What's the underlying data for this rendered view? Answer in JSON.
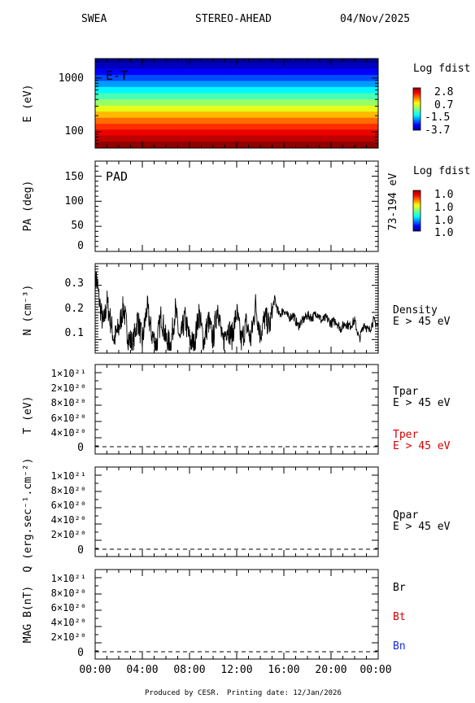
{
  "header": {
    "instrument": "SWEA",
    "spacecraft": "STEREO-AHEAD",
    "date": "04/Nov/2025"
  },
  "footer": {
    "produced_by": "Produced by CESR.",
    "printing_date": "Printing date: 12/Jan/2026"
  },
  "chart_data": [
    {
      "type": "heatmap",
      "panel_label": "E-T",
      "ylabel": "E (eV)",
      "yscale": "log",
      "ylim": [
        50,
        2300
      ],
      "ytick_labels": [
        "1000",
        "100"
      ],
      "yticks": [
        1000,
        100
      ],
      "colorbar": {
        "title": "Log fdist",
        "tick_labels": [
          "2.8",
          "0.7",
          "-1.5",
          "-3.7"
        ],
        "range": [
          -3.7,
          2.8
        ]
      },
      "z_by_energy_band": {
        "energies_eV": [
          2200,
          1700,
          1300,
          1000,
          780,
          600,
          460,
          350,
          270,
          210,
          160,
          125,
          97,
          75,
          58
        ],
        "log_fdist": [
          -3.6,
          -3.3,
          -2.9,
          -2.4,
          -1.9,
          -1.3,
          -0.8,
          -0.3,
          0.2,
          0.8,
          1.3,
          1.7,
          2.1,
          2.4,
          2.7
        ]
      }
    },
    {
      "type": "heatmap",
      "panel_label": "PAD",
      "ylabel": "PA (deg)",
      "right_label": "73-194 eV",
      "ylim": [
        0,
        180
      ],
      "ytick_labels": [
        "150",
        "100",
        "50",
        "0"
      ],
      "yticks": [
        150,
        100,
        50,
        0
      ],
      "colorbar": {
        "title": "Log fdist",
        "tick_labels": [
          "1.0",
          "1.0",
          "1.0",
          "1.0"
        ]
      }
    },
    {
      "type": "line",
      "ylabel": "N (cm⁻³)",
      "legend": [
        "Density",
        "E > 45 eV"
      ],
      "ylim": [
        0.05,
        0.38
      ],
      "ytick_labels": [
        "0.3",
        "0.2",
        "0.1"
      ],
      "yticks": [
        0.3,
        0.2,
        0.1
      ],
      "series": [
        {
          "name": "Density",
          "x_hours": [
            0.0,
            0.1,
            0.3,
            0.5,
            0.7,
            1.0,
            1.3,
            1.6,
            2.0,
            2.4,
            2.8,
            3.2,
            3.6,
            4.0,
            4.4,
            4.8,
            5.2,
            5.6,
            6.0,
            6.4,
            6.8,
            7.2,
            7.6,
            8.0,
            8.4,
            8.8,
            9.2,
            9.6,
            10.0,
            10.4,
            10.8,
            11.2,
            11.6,
            12.0,
            12.4,
            12.8,
            13.2,
            13.6,
            14.0,
            14.4,
            14.8,
            15.2,
            15.6,
            16.0,
            16.4,
            16.8,
            17.2,
            17.6,
            18.0,
            18.4,
            18.8,
            19.2,
            19.6,
            20.0,
            20.4,
            20.8,
            21.2,
            21.6,
            22.0,
            22.4,
            22.8,
            23.2,
            23.6,
            24.0
          ],
          "values": [
            0.3,
            0.33,
            0.26,
            0.2,
            0.15,
            0.24,
            0.17,
            0.1,
            0.14,
            0.22,
            0.11,
            0.08,
            0.18,
            0.09,
            0.22,
            0.12,
            0.08,
            0.19,
            0.1,
            0.08,
            0.21,
            0.09,
            0.18,
            0.1,
            0.08,
            0.2,
            0.09,
            0.17,
            0.1,
            0.23,
            0.08,
            0.15,
            0.11,
            0.2,
            0.09,
            0.16,
            0.1,
            0.23,
            0.12,
            0.18,
            0.15,
            0.25,
            0.19,
            0.21,
            0.18,
            0.19,
            0.15,
            0.17,
            0.19,
            0.18,
            0.2,
            0.17,
            0.18,
            0.16,
            0.17,
            0.14,
            0.16,
            0.15,
            0.17,
            0.1,
            0.16,
            0.13,
            0.17,
            0.15
          ]
        }
      ]
    },
    {
      "type": "line",
      "ylabel": "T (eV)",
      "legend": [
        "Tpar",
        "E > 45 eV",
        "Tper",
        "E > 45 eV"
      ],
      "legend_colors": [
        "#000000",
        "#000000",
        "#d40000",
        "#d40000"
      ],
      "ylim": [
        0,
        1.1e+21
      ],
      "ytick_labels": [
        "1×10²¹",
        "8×10²⁰",
        "6×10²⁰",
        "4×10²⁰",
        "2×10²⁰",
        "0"
      ],
      "yticks": [
        1e+21,
        8e+20,
        6e+20,
        4e+20,
        2e+20,
        0
      ],
      "series": [
        {
          "name": "Tpar",
          "x_hours": [
            0,
            24
          ],
          "values": [
            0,
            0
          ]
        }
      ]
    },
    {
      "type": "line",
      "ylabel": "Q (erg.sec⁻¹.cm⁻²)",
      "legend": [
        "Qpar",
        "E > 45 eV"
      ],
      "legend_colors": [
        "#000000",
        "#000000"
      ],
      "ylim": [
        0,
        1.1e+21
      ],
      "ytick_labels": [
        "1×10²¹",
        "8×10²⁰",
        "6×10²⁰",
        "4×10²⁰",
        "2×10²⁰",
        "0"
      ],
      "yticks": [
        1e+21,
        8e+20,
        6e+20,
        4e+20,
        2e+20,
        0
      ],
      "series": [
        {
          "name": "Qpar",
          "x_hours": [
            0,
            24
          ],
          "values": [
            0,
            0
          ]
        }
      ]
    },
    {
      "type": "line",
      "ylabel": "MAG B(nT)",
      "legend": [
        "Br",
        "Bt",
        "Bn"
      ],
      "legend_colors": [
        "#000000",
        "#d40000",
        "#1a2ad8"
      ],
      "ylim": [
        0,
        1.1e+21
      ],
      "ytick_labels": [
        "1×10²¹",
        "8×10²⁰",
        "6×10²⁰",
        "4×10²⁰",
        "2×10²⁰",
        "0"
      ],
      "yticks": [
        1e+21,
        8e+20,
        6e+20,
        4e+20,
        2e+20,
        0
      ],
      "series": [
        {
          "name": "Br",
          "x_hours": [
            0,
            24
          ],
          "values": [
            0,
            0
          ]
        }
      ]
    }
  ],
  "x_axis": {
    "tick_labels": [
      "00:00",
      "04:00",
      "08:00",
      "12:00",
      "16:00",
      "20:00",
      "00:00"
    ],
    "ticks_hours": [
      0,
      4,
      8,
      12,
      16,
      20,
      24
    ],
    "xlim_hours": [
      0,
      24
    ]
  }
}
